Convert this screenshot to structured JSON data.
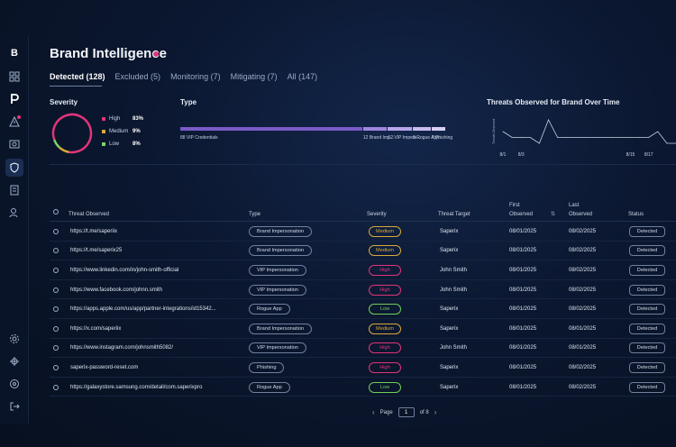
{
  "app": {
    "title": "Brand Intelligence",
    "logo_text": "B"
  },
  "tabs": [
    {
      "label": "Detected (128)",
      "active": true
    },
    {
      "label": "Excluded (5)",
      "active": false
    },
    {
      "label": "Monitoring (7)",
      "active": false
    },
    {
      "label": "Mitigating (7)",
      "active": false
    },
    {
      "label": "All (147)",
      "active": false
    }
  ],
  "severity": {
    "title": "Severity",
    "items": [
      {
        "label": "High",
        "pct": "83%",
        "value": 83,
        "color": "#e0357a"
      },
      {
        "label": "Medium",
        "pct": "9%",
        "value": 9,
        "color": "#d9a93a"
      },
      {
        "label": "Low",
        "pct": "8%",
        "value": 8,
        "color": "#7ad36a"
      }
    ]
  },
  "type": {
    "title": "Type",
    "items": [
      {
        "label": "88 VIP Credentials",
        "value": 88
      },
      {
        "label": "12 Brand Imp...",
        "value": 12
      },
      {
        "label": "12 VIP Impers...",
        "value": 12
      },
      {
        "label": "9 Rogue App",
        "value": 9
      },
      {
        "label": "7 Phishing",
        "value": 7
      }
    ],
    "colors": [
      "#7a5bc7",
      "#9f86df",
      "#b9a6ea",
      "#c9bbf0",
      "#d8cff5"
    ]
  },
  "chart_data": {
    "type": "line",
    "title": "Threats Observed for Brand Over Time",
    "x": [
      "8/1",
      "8/2",
      "8/3",
      "8/4",
      "8/5",
      "8/6",
      "8/7",
      "8/8",
      "8/9",
      "8/10",
      "8/11",
      "8/12",
      "8/13",
      "8/14",
      "8/15",
      "8/16",
      "8/17",
      "8/18",
      "8/19",
      "8/20"
    ],
    "tick_labels": [
      "8/1",
      "8/3",
      "8/15",
      "8/17"
    ],
    "values": [
      2,
      1,
      1,
      1,
      0,
      4,
      1,
      1,
      1,
      1,
      1,
      1,
      1,
      1,
      1,
      1,
      1,
      2,
      0,
      0
    ],
    "ylabel": "Threats Observed",
    "series_color": "#c9d2e2"
  },
  "table": {
    "headers": {
      "threat": "Threat Observed",
      "type": "Type",
      "severity": "Severity",
      "target": "Threat Target",
      "first": "First\nObserved",
      "last": "Last\nObserved",
      "status": "Status"
    },
    "rows": [
      {
        "url": "https://t.me/saperiix",
        "type": "Brand Impersonation",
        "severity": "Medium",
        "target": "Saperix",
        "first": "08/01/2025",
        "last": "08/02/2025",
        "status": "Detected"
      },
      {
        "url": "https://t.me/saperix25",
        "type": "Brand Impersonation",
        "severity": "Medium",
        "target": "Saperix",
        "first": "08/01/2025",
        "last": "08/02/2025",
        "status": "Detected"
      },
      {
        "url": "https://www.linkedin.com/in/john-smith-official",
        "type": "VIP Impersonation",
        "severity": "High",
        "target": "John Smith",
        "first": "08/01/2025",
        "last": "08/02/2025",
        "status": "Detected"
      },
      {
        "url": "https://www.facebook.com/johnn.smith",
        "type": "VIP Impersonation",
        "severity": "High",
        "target": "John Smith",
        "first": "08/01/2025",
        "last": "08/02/2025",
        "status": "Detected"
      },
      {
        "url": "https://apps.apple.com/us/app/partner-integrations/id15342...",
        "type": "Rogue App",
        "severity": "Low",
        "target": "Saperix",
        "first": "08/01/2025",
        "last": "08/02/2025",
        "status": "Detected"
      },
      {
        "url": "https://x.com/saperiix",
        "type": "Brand Impersonation",
        "severity": "Medium",
        "target": "Saperix",
        "first": "08/01/2025",
        "last": "08/01/2025",
        "status": "Detected"
      },
      {
        "url": "https://www.instagram.com/johnsmith5082/",
        "type": "VIP Impersonation",
        "severity": "High",
        "target": "John Smith",
        "first": "08/01/2025",
        "last": "08/01/2025",
        "status": "Detected"
      },
      {
        "url": "saperix-password-reset.com",
        "type": "Phishing",
        "severity": "High",
        "target": "Saperix",
        "first": "08/01/2025",
        "last": "08/02/2025",
        "status": "Detected"
      },
      {
        "url": "https://galaxystore.samsung.com/detail/com.saperixpro",
        "type": "Rogue App",
        "severity": "Low",
        "target": "Saperix",
        "first": "08/01/2025",
        "last": "08/02/2025",
        "status": "Detected"
      }
    ]
  },
  "pagination": {
    "label": "Page",
    "current": "1",
    "total_label": "of 8"
  },
  "severity_colors": {
    "High": "#e0357a",
    "Medium": "#d9a93a",
    "Low": "#6fcf58"
  },
  "sidebar_icons": [
    "logo",
    "grid-icon",
    "p-icon",
    "alert-icon",
    "image-icon",
    "shield-icon",
    "document-icon",
    "user-icon",
    "gear-icon",
    "compass-icon",
    "help-icon",
    "logout-icon"
  ]
}
